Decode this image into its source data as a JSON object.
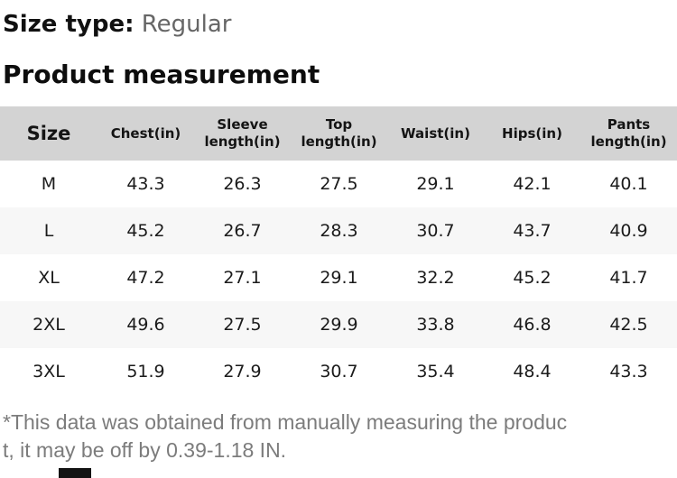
{
  "page": {
    "size_type_label": "Size type:",
    "size_type_value": "Regular",
    "section_title": "Product measurement"
  },
  "table": {
    "columns": [
      "Size",
      "Chest(in)",
      "Sleeve length(in)",
      "Top length(in)",
      "Waist(in)",
      "Hips(in)",
      "Pants length(in)"
    ],
    "rows": [
      {
        "size": "M",
        "values": [
          "43.3",
          "26.3",
          "27.5",
          "29.1",
          "42.1",
          "40.1"
        ]
      },
      {
        "size": "L",
        "values": [
          "45.2",
          "26.7",
          "28.3",
          "30.7",
          "43.7",
          "40.9"
        ]
      },
      {
        "size": "XL",
        "values": [
          "47.2",
          "27.1",
          "29.1",
          "32.2",
          "45.2",
          "41.7"
        ]
      },
      {
        "size": "2XL",
        "values": [
          "49.6",
          "27.5",
          "29.9",
          "33.8",
          "46.8",
          "42.5"
        ]
      },
      {
        "size": "3XL",
        "values": [
          "51.9",
          "27.9",
          "30.7",
          "35.4",
          "48.4",
          "43.3"
        ]
      }
    ]
  },
  "footnote": {
    "line1": "*This data was obtained from manually measuring the produc",
    "line2": "t, it may be off by 0.39-1.18 IN."
  },
  "colors": {
    "header_background": "#d3d3d3",
    "striped_row_background": "#f7f7f7",
    "muted_text": "#7c7c7c",
    "heading_text": "#111111"
  }
}
